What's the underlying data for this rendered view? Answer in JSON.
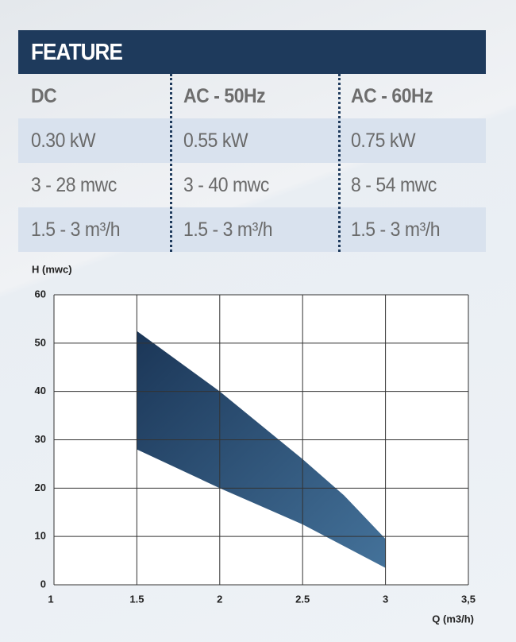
{
  "table": {
    "title": "FEATURE",
    "columns": [
      "DC",
      "AC - 50Hz",
      "AC - 60Hz"
    ],
    "rows": [
      [
        "0.30 kW",
        "0.55 kW",
        "0.75 kW"
      ],
      [
        "3 - 28 mwc",
        "3 - 40 mwc",
        "8 - 54 mwc"
      ],
      [
        "1.5 - 3 m³/h",
        "1.5 - 3 m³/h",
        "1.5 - 3 m³/h"
      ]
    ]
  },
  "chart_data": {
    "type": "range_area",
    "ylabel": "H (mwc)",
    "xlabel": "Q (m3/h)",
    "x": [
      1.5,
      2,
      2.5,
      2.75,
      3
    ],
    "high": [
      52.5,
      40,
      26,
      18.5,
      9.5
    ],
    "low": [
      28,
      20,
      12.5,
      8,
      3.5
    ],
    "color": "#24476c",
    "xlim": [
      1,
      3.5
    ],
    "xticks": [
      1,
      1.5,
      2,
      2.5,
      3,
      {
        "value": 3.5,
        "label": "3,5"
      }
    ],
    "ylim": [
      0,
      60
    ],
    "yticks": [
      0,
      10,
      20,
      30,
      40,
      50,
      60
    ],
    "grid": true
  }
}
